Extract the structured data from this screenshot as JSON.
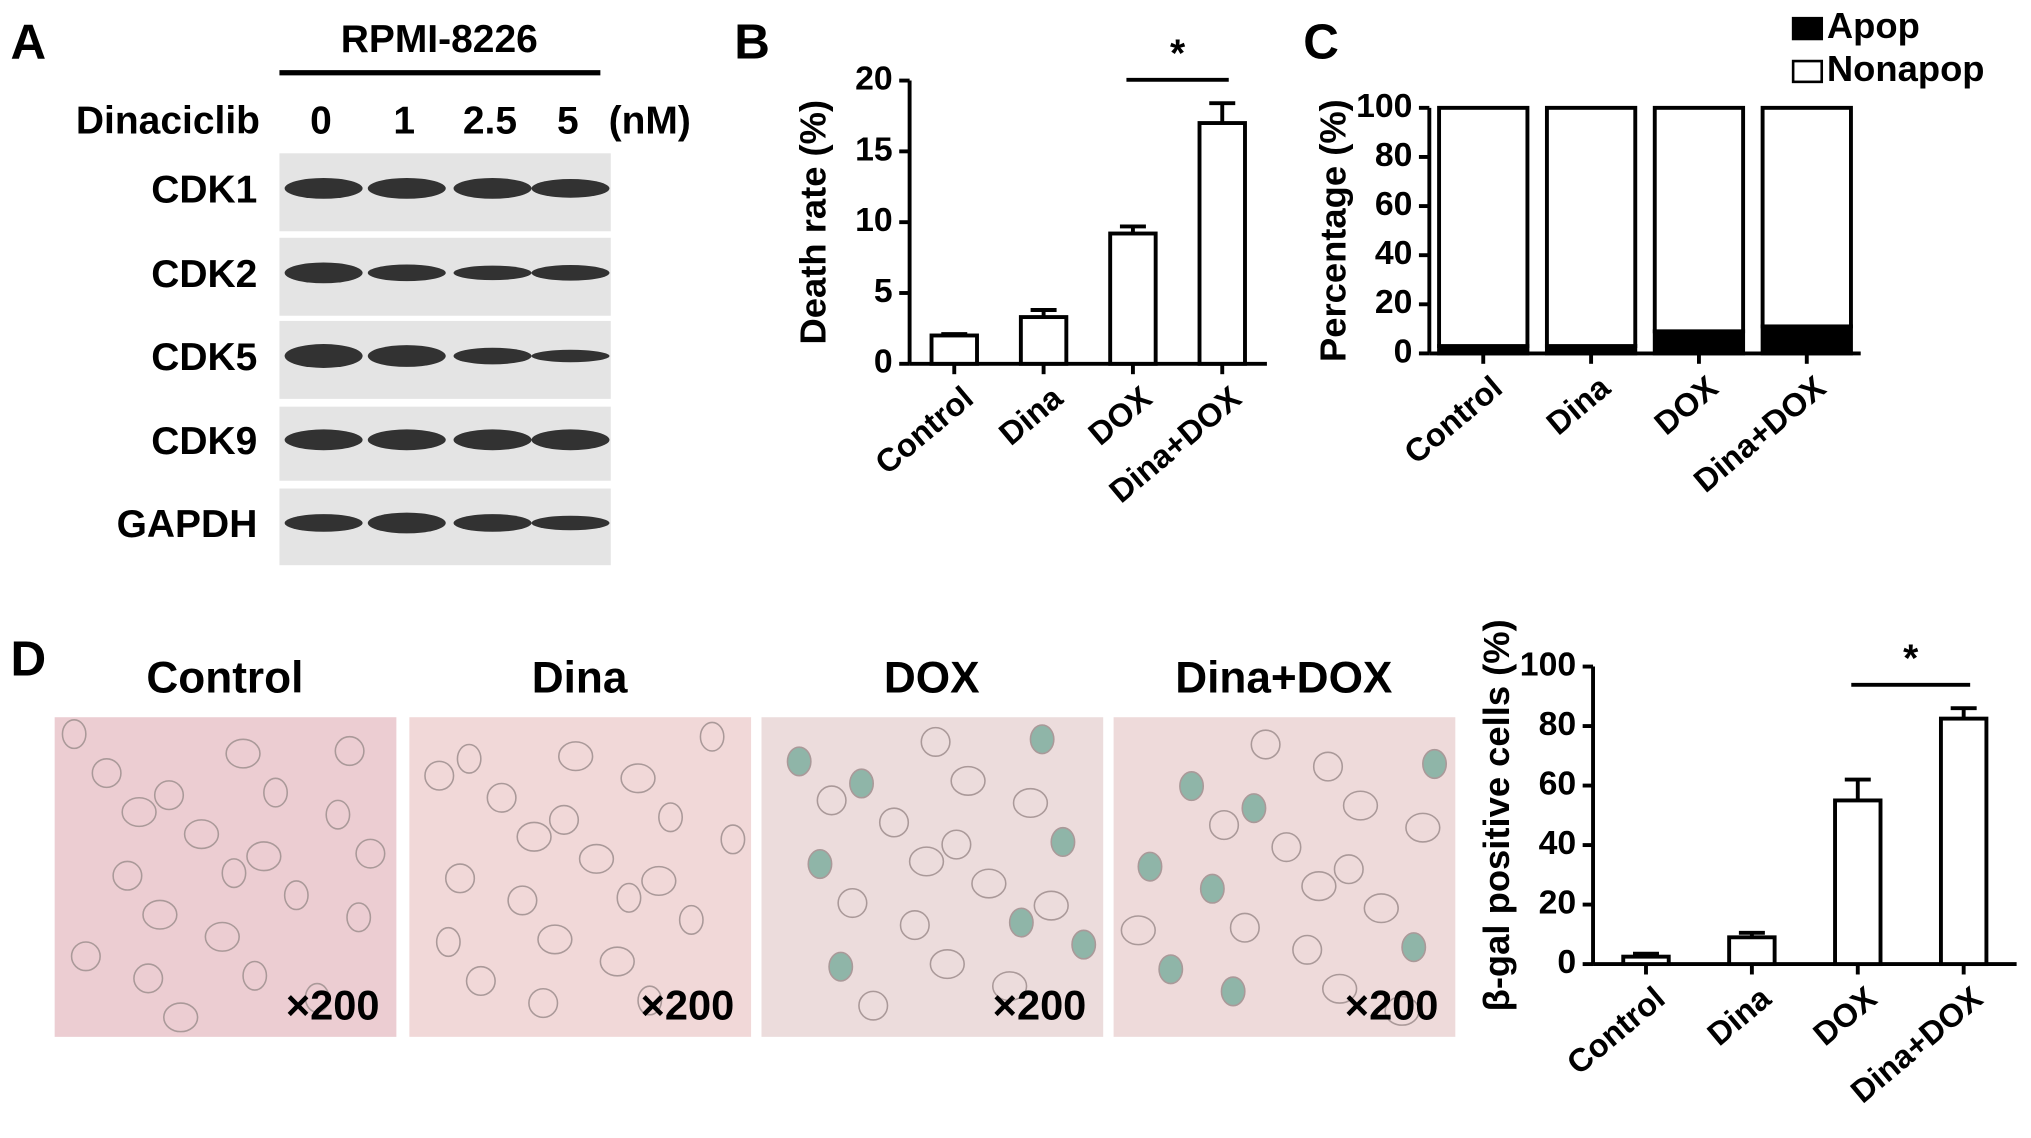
{
  "panel_labels": [
    "A",
    "B",
    "C",
    "D"
  ],
  "blot": {
    "cell_line": "RPMI-8226",
    "treatment": "Dinaciclib",
    "doses": [
      "0",
      "1",
      "2.5",
      "5"
    ],
    "unit": "(nM)",
    "proteins": [
      "CDK1",
      "CDK2",
      "CDK5",
      "CDK9",
      "GAPDH"
    ]
  },
  "micrographs": {
    "groups": [
      "Control",
      "Dina",
      "DOX",
      "Dina+DOX"
    ],
    "magnification": "×200"
  },
  "chart_data": [
    {
      "type": "bar",
      "ylabel": "Death rate (%)",
      "categories": [
        "Control",
        "Dina",
        "DOX",
        "Dina+DOX"
      ],
      "values": [
        2,
        3.3,
        9.2,
        17
      ],
      "errors": [
        0.1,
        0.5,
        0.5,
        1.4
      ],
      "color": "#ffffff",
      "ylim": [
        0,
        20
      ],
      "yticks": [
        0,
        5,
        10,
        15,
        20
      ],
      "annotation": "*"
    },
    {
      "type": "stacked_bar",
      "ylabel": "Percentage (%)",
      "categories": [
        "Control",
        "Dina",
        "DOX",
        "Dina+DOX"
      ],
      "series": [
        {
          "name": "Apop",
          "color": "#000000",
          "values": [
            3,
            3,
            9,
            11
          ]
        },
        {
          "name": "Nonapop",
          "color": "#ffffff",
          "values": [
            97,
            97,
            91,
            89
          ]
        }
      ],
      "ylim": [
        0,
        100
      ],
      "yticks": [
        0,
        20,
        40,
        60,
        80,
        100
      ],
      "legend": "top"
    },
    {
      "type": "bar",
      "ylabel": "β-gal positive cells (%)",
      "categories": [
        "Control",
        "Dina",
        "DOX",
        "Dina+DOX"
      ],
      "values": [
        2.5,
        9,
        55,
        82.5
      ],
      "errors": [
        1,
        1.5,
        7,
        3.5
      ],
      "color": "#ffffff",
      "ylim": [
        0,
        100
      ],
      "yticks": [
        0,
        20,
        40,
        60,
        80,
        100
      ],
      "annotation": "*"
    }
  ]
}
